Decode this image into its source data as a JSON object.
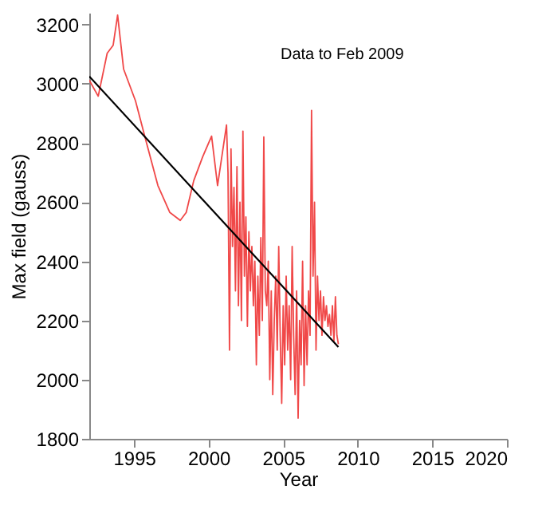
{
  "chart_data": {
    "type": "line",
    "xlabel": "Year",
    "ylabel": "Max field (gauss)",
    "annotations": [
      "Data to Feb 2009"
    ],
    "xlim": [
      1992,
      2020
    ],
    "xticks": [
      1995,
      2000,
      2005,
      2010,
      2015,
      2020
    ],
    "ylim": [
      1800,
      3240
    ],
    "yticks": [
      1800,
      2000,
      2200,
      2400,
      2600,
      2800,
      3000,
      3200
    ],
    "grid": false,
    "marker": "none",
    "line_style": "solid",
    "series": [
      {
        "color": "#f04848",
        "x": [
          1992.0,
          1992.6,
          1993.2,
          1993.6,
          1993.9,
          1994.3,
          1995.1,
          1995.8,
          1996.6,
          1997.4,
          1998.1,
          1998.5,
          1999.0,
          1999.6,
          2000.2,
          2000.6,
          2001.2,
          2001.3,
          2001.4,
          2001.5,
          2001.6,
          2001.7,
          2001.8,
          2001.9,
          2002.0,
          2002.1,
          2002.2,
          2002.3,
          2002.4,
          2002.5,
          2002.6,
          2002.7,
          2002.8,
          2002.9,
          2003.0,
          2003.1,
          2003.2,
          2003.3,
          2003.4,
          2003.5,
          2003.6,
          2003.7,
          2003.8,
          2003.9,
          2004.0,
          2004.1,
          2004.2,
          2004.3,
          2004.4,
          2004.5,
          2004.6,
          2004.7,
          2004.8,
          2004.9,
          2005.0,
          2005.1,
          2005.2,
          2005.3,
          2005.4,
          2005.5,
          2005.6,
          2005.7,
          2005.8,
          2005.9,
          2006.0,
          2006.1,
          2006.2,
          2006.3,
          2006.4,
          2006.5,
          2006.6,
          2006.7,
          2006.8,
          2006.9,
          2007.0,
          2007.1,
          2007.2,
          2007.3,
          2007.4,
          2007.5,
          2007.6,
          2007.7,
          2007.8,
          2007.9,
          2008.0,
          2008.1,
          2008.2,
          2008.3,
          2008.4,
          2008.5,
          2008.6,
          2008.7
        ],
        "values": [
          3012,
          2958,
          3103,
          3130,
          3232,
          3050,
          2942,
          2807,
          2656,
          2565,
          2538,
          2565,
          2672,
          2753,
          2823,
          2656,
          2861,
          2700,
          2100,
          2780,
          2450,
          2650,
          2300,
          2720,
          2250,
          2600,
          2200,
          2840,
          2350,
          2550,
          2180,
          2500,
          2300,
          2450,
          2250,
          2400,
          2050,
          2350,
          2150,
          2480,
          2200,
          2820,
          2300,
          2250,
          2400,
          2000,
          2300,
          1950,
          2200,
          2350,
          2100,
          2450,
          2150,
          1920,
          2250,
          2050,
          2350,
          2100,
          2250,
          2000,
          2450,
          2150,
          1950,
          2300,
          1870,
          2200,
          2050,
          2400,
          1980,
          2250,
          2050,
          2300,
          2150,
          2910,
          2350,
          2600,
          2100,
          2350,
          2200,
          2300,
          2150,
          2280,
          2200,
          2250,
          2180,
          2220,
          2150,
          2250,
          2130,
          2280,
          2150,
          2120
        ]
      },
      {
        "type": "line",
        "color": "#000000",
        "x": [
          1992.0,
          2008.7
        ],
        "values": [
          3025,
          2110
        ]
      }
    ]
  }
}
